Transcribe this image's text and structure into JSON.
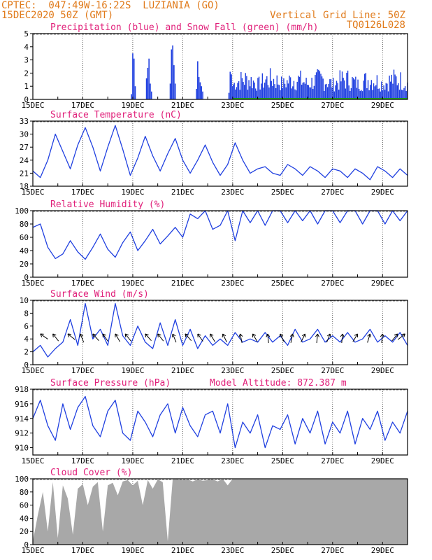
{
  "header": {
    "line1": "CPTEC:  047:49W-16:22S  LUZIANIA (GO)",
    "line2": "15DEC2020 50Z (GMT)",
    "grid_note": "Vertical Grid Line: 50Z",
    "code": "TQ0126L028"
  },
  "colors": {
    "header": "#e07a1a",
    "title": "#e0207a",
    "series": "#2040e0",
    "snow": "#20a020",
    "cloud": "#a8a8a8",
    "wind_arrow": "#000000"
  },
  "x_ticks": [
    "15DEC",
    "17DEC",
    "19DEC",
    "21DEC",
    "23DEC",
    "25DEC",
    "27DEC",
    "29DEC"
  ],
  "chart_data": [
    {
      "type": "bar",
      "title": "Precipitation (blue) and Snow Fall (green) (mm/h)",
      "ylim": [
        0,
        5
      ],
      "yticks": [
        0,
        1,
        2,
        3,
        4,
        5
      ],
      "x_days": [],
      "series": [
        {
          "name": "Precipitation",
          "points": [
            [
              18.95,
              0.4
            ],
            [
              19.0,
              3.5
            ],
            [
              19.05,
              3.1
            ],
            [
              19.1,
              1.0
            ],
            [
              19.55,
              1.6
            ],
            [
              19.6,
              2.4
            ],
            [
              19.65,
              3.1
            ],
            [
              19.7,
              1.2
            ],
            [
              19.75,
              0.6
            ],
            [
              20.5,
              1.2
            ],
            [
              20.55,
              3.8
            ],
            [
              20.6,
              4.1
            ],
            [
              20.65,
              2.6
            ],
            [
              20.7,
              1.2
            ],
            [
              21.55,
              0.8
            ],
            [
              21.6,
              2.9
            ],
            [
              21.65,
              1.7
            ],
            [
              21.7,
              1.3
            ],
            [
              21.75,
              1.0
            ],
            [
              21.8,
              0.6
            ],
            [
              22.85,
              0.5
            ],
            [
              22.9,
              2.1
            ],
            [
              22.95,
              1.9
            ],
            [
              23.0,
              1.0
            ]
          ]
        },
        {
          "name": "Snow Fall",
          "points": []
        }
      ],
      "dense_from_day": 23.0,
      "dense_range": [
        0.6,
        2.4
      ]
    },
    {
      "type": "line",
      "title": "Surface Temperature (nC)",
      "ylim": [
        18,
        33
      ],
      "yticks": [
        18,
        21,
        24,
        27,
        30,
        33
      ],
      "days": [
        15.0,
        15.3,
        15.6,
        15.9,
        16.2,
        16.5,
        16.8,
        17.1,
        17.4,
        17.7,
        18.0,
        18.3,
        18.6,
        18.9,
        19.2,
        19.5,
        19.8,
        20.1,
        20.4,
        20.7,
        21.0,
        21.3,
        21.6,
        21.9,
        22.2,
        22.5,
        22.8,
        23.1,
        23.4,
        23.7,
        24.0,
        24.3,
        24.6,
        24.9,
        25.2,
        25.5,
        25.8,
        26.1,
        26.4,
        26.7,
        27.0,
        27.3,
        27.6,
        27.9,
        28.2,
        28.5,
        28.8,
        29.1,
        29.4,
        29.7,
        30.0
      ],
      "values": [
        21.5,
        20.0,
        24.0,
        30.0,
        26.0,
        22.0,
        27.5,
        31.5,
        27.0,
        21.5,
        27.0,
        32.0,
        26.5,
        20.5,
        24.5,
        29.5,
        25.0,
        21.5,
        25.5,
        29.0,
        24.0,
        21.0,
        24.0,
        27.5,
        23.5,
        20.5,
        23.0,
        28.0,
        24.0,
        21.0,
        22.0,
        22.5,
        21.0,
        20.5,
        23.0,
        22.0,
        20.5,
        22.5,
        21.5,
        20.0,
        22.0,
        21.5,
        20.0,
        22.0,
        21.0,
        19.5,
        22.5,
        21.5,
        20.0,
        22.0,
        20.5
      ]
    },
    {
      "type": "line",
      "title": "Relative Humidity (%)",
      "ylim": [
        0,
        100
      ],
      "yticks": [
        0,
        20,
        40,
        60,
        80,
        100
      ],
      "days": [
        15.0,
        15.3,
        15.6,
        15.9,
        16.2,
        16.5,
        16.8,
        17.1,
        17.4,
        17.7,
        18.0,
        18.3,
        18.6,
        18.9,
        19.2,
        19.5,
        19.8,
        20.1,
        20.4,
        20.7,
        21.0,
        21.3,
        21.6,
        21.9,
        22.2,
        22.5,
        22.8,
        23.1,
        23.4,
        23.7,
        24.0,
        24.3,
        24.6,
        24.9,
        25.2,
        25.5,
        25.8,
        26.1,
        26.4,
        26.7,
        27.0,
        27.3,
        27.6,
        27.9,
        28.2,
        28.5,
        28.8,
        29.1,
        29.4,
        29.7,
        30.0
      ],
      "values": [
        75,
        80,
        45,
        28,
        35,
        55,
        38,
        27,
        45,
        65,
        42,
        30,
        52,
        68,
        40,
        55,
        72,
        50,
        62,
        75,
        60,
        95,
        88,
        100,
        72,
        78,
        100,
        55,
        100,
        82,
        100,
        78,
        100,
        100,
        82,
        100,
        85,
        100,
        80,
        100,
        100,
        82,
        100,
        100,
        80,
        100,
        100,
        80,
        100,
        85,
        100
      ]
    },
    {
      "type": "line",
      "title": "Surface Wind (m/s)",
      "ylim": [
        0,
        10
      ],
      "yticks": [
        0,
        2,
        4,
        6,
        8,
        10
      ],
      "days": [
        15.0,
        15.3,
        15.6,
        15.9,
        16.2,
        16.5,
        16.8,
        17.1,
        17.4,
        17.7,
        18.0,
        18.3,
        18.6,
        18.9,
        19.2,
        19.5,
        19.8,
        20.1,
        20.4,
        20.7,
        21.0,
        21.3,
        21.6,
        21.9,
        22.2,
        22.5,
        22.8,
        23.1,
        23.4,
        23.7,
        24.0,
        24.3,
        24.6,
        24.9,
        25.2,
        25.5,
        25.8,
        26.1,
        26.4,
        26.7,
        27.0,
        27.3,
        27.6,
        27.9,
        28.2,
        28.5,
        28.8,
        29.1,
        29.4,
        29.7,
        30.0
      ],
      "values": [
        2.0,
        3.0,
        1.2,
        2.5,
        3.5,
        7.0,
        3.0,
        9.5,
        4.0,
        5.5,
        3.0,
        9.5,
        4.5,
        3.0,
        6.0,
        3.5,
        2.5,
        6.5,
        3.0,
        7.0,
        3.0,
        5.5,
        2.5,
        4.5,
        3.0,
        4.0,
        3.0,
        5.0,
        3.5,
        4.0,
        3.5,
        5.0,
        3.5,
        4.5,
        3.0,
        5.5,
        3.5,
        4.0,
        5.5,
        3.5,
        4.5,
        3.5,
        5.0,
        3.5,
        4.0,
        5.5,
        3.5,
        4.5,
        3.5,
        5.0,
        3.0
      ],
      "arrows": [
        [
          15.3,
          1.0,
          0.7
        ],
        [
          15.8,
          0.8,
          1.0
        ],
        [
          16.4,
          1.0,
          0.8
        ],
        [
          16.9,
          0.4,
          1.0
        ],
        [
          17.4,
          0.9,
          1.0
        ],
        [
          17.8,
          0.7,
          1.0
        ],
        [
          18.3,
          0.6,
          1.0
        ],
        [
          18.7,
          0.8,
          1.0
        ],
        [
          19.5,
          0.9,
          1.0
        ],
        [
          20.0,
          0.8,
          1.0
        ],
        [
          20.6,
          0.4,
          1.0
        ],
        [
          21.1,
          0.9,
          1.0
        ],
        [
          21.6,
          0.7,
          1.0
        ],
        [
          22.1,
          0.6,
          1.0
        ],
        [
          22.6,
          0.5,
          1.0
        ],
        [
          23.3,
          0.2,
          1.0
        ],
        [
          23.8,
          0.6,
          1.0
        ],
        [
          24.4,
          0.1,
          1.0
        ],
        [
          24.9,
          0.5,
          1.0
        ],
        [
          25.4,
          -0.2,
          1.0
        ],
        [
          25.9,
          -0.5,
          1.0
        ],
        [
          26.4,
          -0.1,
          1.0
        ],
        [
          26.9,
          -0.4,
          1.0
        ],
        [
          27.4,
          -0.1,
          1.0
        ],
        [
          28.0,
          -0.6,
          1.0
        ],
        [
          28.5,
          -0.3,
          1.0
        ],
        [
          29.0,
          -0.1,
          1.0
        ],
        [
          29.6,
          -0.8,
          1.0
        ],
        [
          29.9,
          -1.0,
          0.8
        ]
      ]
    },
    {
      "type": "line",
      "title": "Surface Pressure (hPa)",
      "annotation": "Model Altitude: 872.387 m",
      "ylim": [
        909,
        918
      ],
      "yticks": [
        910,
        912,
        914,
        916,
        918
      ],
      "days": [
        15.0,
        15.3,
        15.6,
        15.9,
        16.2,
        16.5,
        16.8,
        17.1,
        17.4,
        17.7,
        18.0,
        18.3,
        18.6,
        18.9,
        19.2,
        19.5,
        19.8,
        20.1,
        20.4,
        20.7,
        21.0,
        21.3,
        21.6,
        21.9,
        22.2,
        22.5,
        22.8,
        23.1,
        23.4,
        23.7,
        24.0,
        24.3,
        24.6,
        24.9,
        25.2,
        25.5,
        25.8,
        26.1,
        26.4,
        26.7,
        27.0,
        27.3,
        27.6,
        27.9,
        28.2,
        28.5,
        28.8,
        29.1,
        29.4,
        29.7,
        30.0
      ],
      "values": [
        914.0,
        916.5,
        913.0,
        911.0,
        916.0,
        912.5,
        915.5,
        917.0,
        913.0,
        911.5,
        915.0,
        916.5,
        912.0,
        911.0,
        915.0,
        913.5,
        911.5,
        914.5,
        916.0,
        912.0,
        915.5,
        913.0,
        911.5,
        914.5,
        915.0,
        912.0,
        916.0,
        910.0,
        913.5,
        912.0,
        914.5,
        910.0,
        913.0,
        912.5,
        914.5,
        910.5,
        914.0,
        912.0,
        915.0,
        910.5,
        913.5,
        912.0,
        915.0,
        910.5,
        914.0,
        912.5,
        915.0,
        911.0,
        913.5,
        912.0,
        915.0
      ]
    },
    {
      "type": "area",
      "title": "Cloud Cover (%)",
      "ylim": [
        0,
        100
      ],
      "yticks": [
        0,
        20,
        40,
        60,
        80,
        100
      ],
      "days": [
        15.0,
        15.2,
        15.4,
        15.6,
        15.8,
        16.0,
        16.2,
        16.4,
        16.6,
        16.8,
        17.0,
        17.2,
        17.4,
        17.6,
        17.8,
        18.0,
        18.2,
        18.4,
        18.6,
        18.8,
        19.0,
        19.2,
        19.4,
        19.6,
        19.8,
        20.0,
        20.2,
        20.4,
        20.6,
        20.8,
        21.0,
        21.2,
        21.4,
        21.6,
        21.8,
        22.0,
        22.2,
        22.4,
        22.6,
        22.8,
        23.0,
        30.0
      ],
      "values": [
        5,
        45,
        80,
        20,
        95,
        10,
        90,
        70,
        15,
        85,
        92,
        60,
        88,
        95,
        20,
        90,
        94,
        75,
        96,
        98,
        90,
        97,
        60,
        98,
        85,
        99,
        95,
        5,
        100,
        99,
        98,
        99,
        96,
        99,
        97,
        98,
        99,
        96,
        100,
        90,
        100,
        100
      ]
    }
  ]
}
